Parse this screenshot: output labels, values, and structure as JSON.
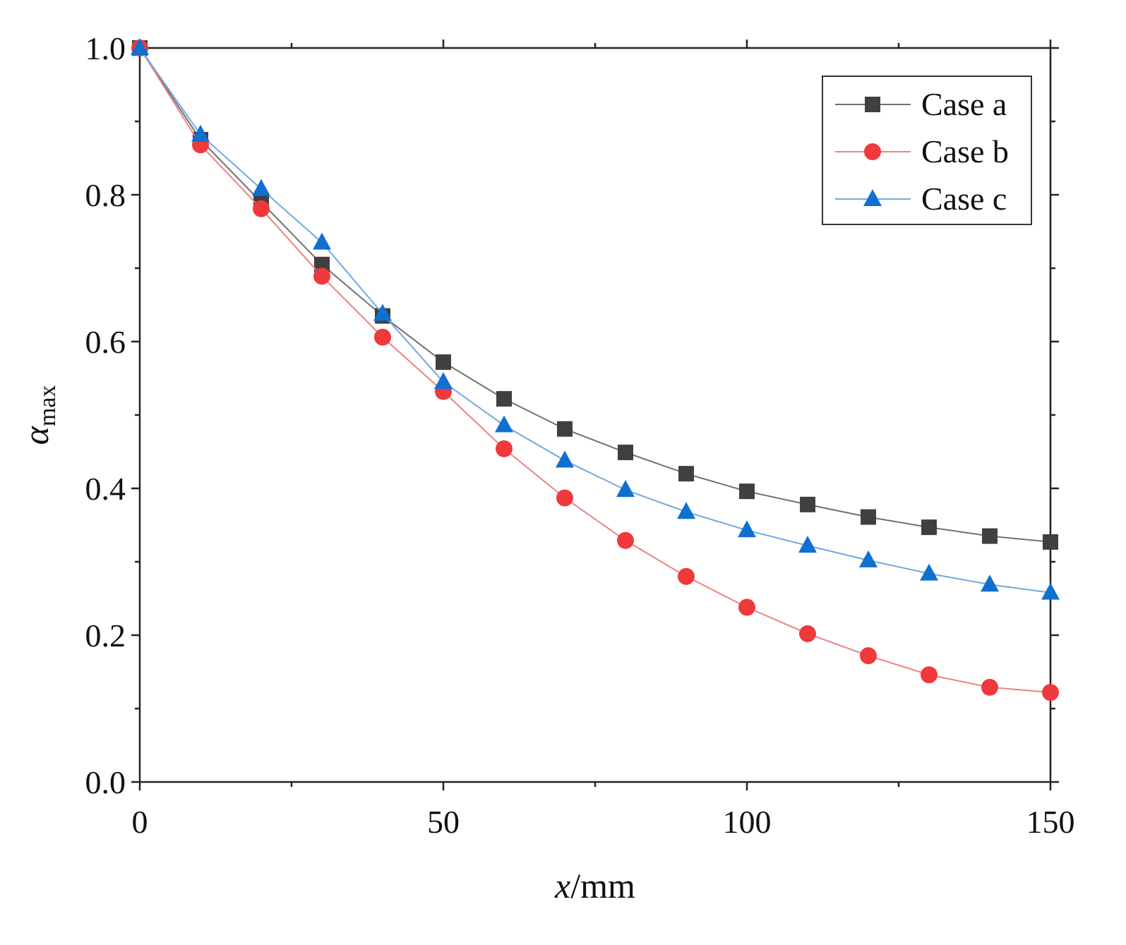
{
  "chart_data": {
    "type": "line",
    "title": "",
    "xlabel": {
      "italic": "x",
      "rest": "/mm"
    },
    "ylabel": {
      "symbol": "α",
      "subscript": "max"
    },
    "xlim": [
      0,
      150
    ],
    "ylim": [
      0.0,
      1.0
    ],
    "xticks": [
      0,
      50,
      100,
      150
    ],
    "xtick_labels": [
      "0",
      "50",
      "100",
      "150"
    ],
    "yticks": [
      0.0,
      0.2,
      0.4,
      0.6,
      0.8,
      1.0
    ],
    "ytick_labels": [
      "0.0",
      "0.2",
      "0.4",
      "0.6",
      "0.8",
      "1.0"
    ],
    "grid": false,
    "legend_position": "top-right",
    "x": [
      0,
      10,
      20,
      30,
      40,
      50,
      60,
      70,
      80,
      90,
      100,
      110,
      120,
      130,
      140,
      150
    ],
    "series": [
      {
        "name": "Case a",
        "marker": "square",
        "color": "#404040",
        "line_color": "#707070",
        "values": [
          1.0,
          0.875,
          0.79,
          0.705,
          0.635,
          0.572,
          0.522,
          0.481,
          0.449,
          0.42,
          0.396,
          0.378,
          0.361,
          0.347,
          0.335,
          0.327
        ]
      },
      {
        "name": "Case b",
        "marker": "circle",
        "color": "#f0393c",
        "line_color": "#f08080",
        "values": [
          1.0,
          0.868,
          0.781,
          0.689,
          0.606,
          0.532,
          0.454,
          0.387,
          0.329,
          0.28,
          0.238,
          0.202,
          0.172,
          0.146,
          0.129,
          0.122
        ]
      },
      {
        "name": "Case c",
        "marker": "triangle",
        "color": "#1070d0",
        "line_color": "#70a8e0",
        "values": [
          1.0,
          0.882,
          0.808,
          0.735,
          0.638,
          0.545,
          0.486,
          0.438,
          0.398,
          0.368,
          0.343,
          0.322,
          0.302,
          0.284,
          0.269,
          0.258
        ]
      }
    ]
  }
}
